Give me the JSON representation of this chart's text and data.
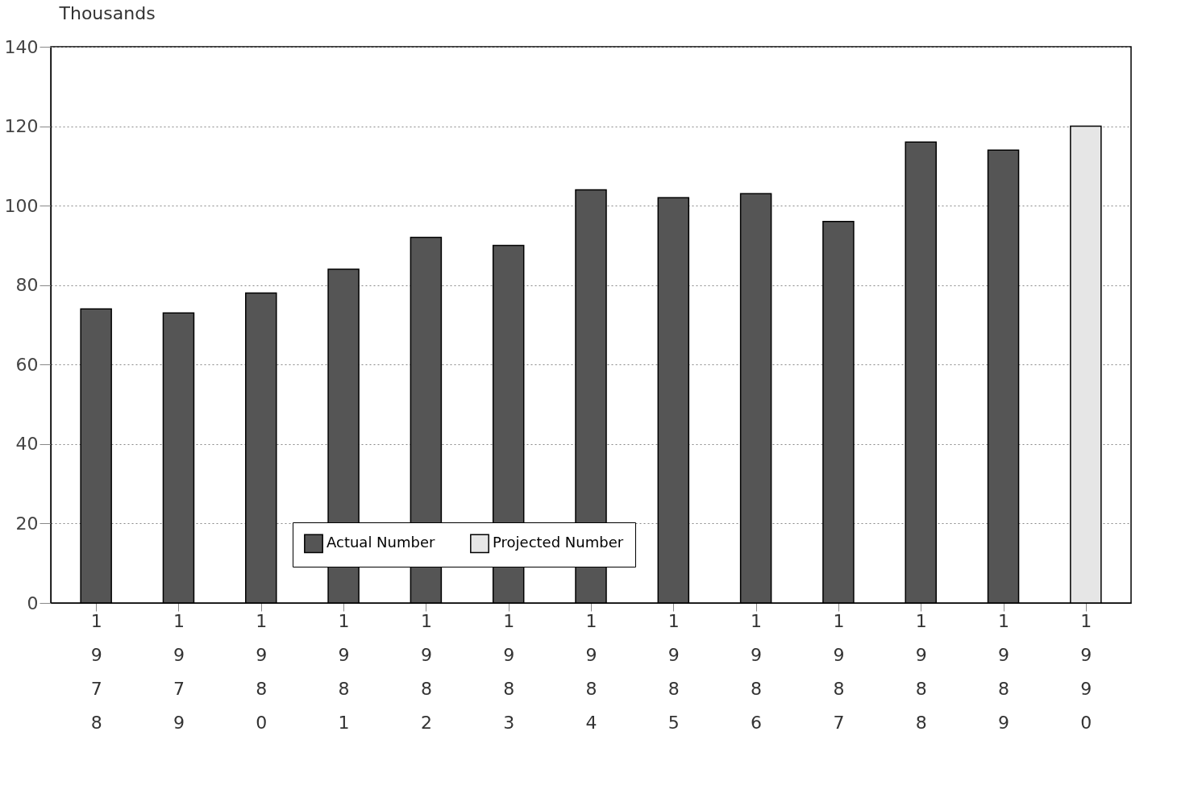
{
  "chart_data": {
    "type": "bar",
    "ylabel": "Thousands",
    "categories": [
      "1978",
      "1979",
      "1980",
      "1981",
      "1982",
      "1983",
      "1984",
      "1985",
      "1986",
      "1987",
      "1988",
      "1989",
      "1990"
    ],
    "series": [
      {
        "name": "Actual Number",
        "color": "#555555",
        "values": [
          74,
          73,
          78,
          84,
          92,
          90,
          104,
          102,
          103,
          96,
          116,
          114,
          null
        ]
      },
      {
        "name": "Projected Number",
        "color": "#e6e6e6",
        "values": [
          null,
          null,
          null,
          null,
          null,
          null,
          null,
          null,
          null,
          null,
          null,
          null,
          120
        ]
      }
    ],
    "ylim": [
      0,
      140
    ],
    "yticks": [
      0,
      20,
      40,
      60,
      80,
      100,
      120,
      140
    ],
    "grid": "y",
    "legend": "bottom"
  }
}
